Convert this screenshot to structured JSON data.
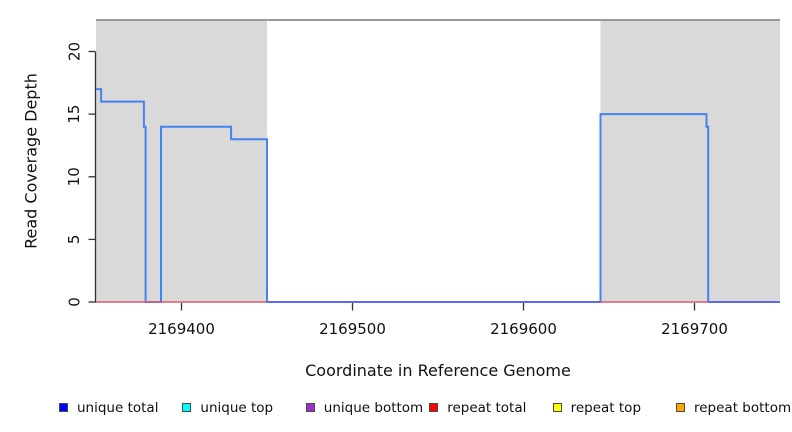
{
  "chart_data": {
    "type": "line",
    "subtype": "step-coverage-plot",
    "title": "",
    "xlabel": "Coordinate in Reference Genome",
    "ylabel": "Read Coverage Depth",
    "xlim": [
      2169350,
      2169750
    ],
    "ylim": [
      0,
      22.5
    ],
    "x_ticks": [
      2169400,
      2169500,
      2169600,
      2169700
    ],
    "y_ticks": [
      0,
      5,
      10,
      15,
      20
    ],
    "grid": false,
    "legend_position": "bottom",
    "repeat_regions_shaded": [
      [
        2169350,
        2169450
      ],
      [
        2169645,
        2169750
      ]
    ],
    "series": [
      {
        "name": "unique total",
        "legend_color": "#0000FF",
        "plot_color": "#4484F0",
        "type": "step",
        "segments": [
          [
            2169350,
            2169353,
            17
          ],
          [
            2169353,
            2169378,
            16
          ],
          [
            2169378,
            2169379,
            14
          ],
          [
            2169379,
            2169388,
            0
          ],
          [
            2169388,
            2169429,
            14
          ],
          [
            2169429,
            2169450,
            13
          ],
          [
            2169450,
            2169645,
            0
          ],
          [
            2169645,
            2169707,
            15
          ],
          [
            2169707,
            2169708,
            14
          ],
          [
            2169708,
            2169750,
            0
          ]
        ]
      },
      {
        "name": "unique top",
        "legend_color": "#00FFFF",
        "constant_value": 0
      },
      {
        "name": "unique bottom",
        "legend_color": "#9932CC",
        "constant_value": 0
      },
      {
        "name": "repeat total",
        "legend_color": "#FF0000",
        "constant_value": 0
      },
      {
        "name": "repeat top",
        "legend_color": "#FFFF00",
        "constant_value": 0
      },
      {
        "name": "repeat bottom",
        "legend_color": "#FFA500",
        "constant_value": 0
      }
    ],
    "baseline_overlays": [
      {
        "from": 2169350,
        "to": 2169450,
        "color": "#E0566E"
      },
      {
        "from": 2169450,
        "to": 2169645,
        "color": "#6565E2"
      },
      {
        "from": 2169645,
        "to": 2169708,
        "color": "#E0566E"
      },
      {
        "from": 2169708,
        "to": 2169750,
        "color": "#6565E2"
      }
    ],
    "styling": {
      "shade_color": "#D9D9D9",
      "top_border_color": "#999999",
      "axis_color": "#333333",
      "tick_label_size": 15,
      "axis_title_size": 16,
      "legend_label_size": 13.5
    }
  }
}
